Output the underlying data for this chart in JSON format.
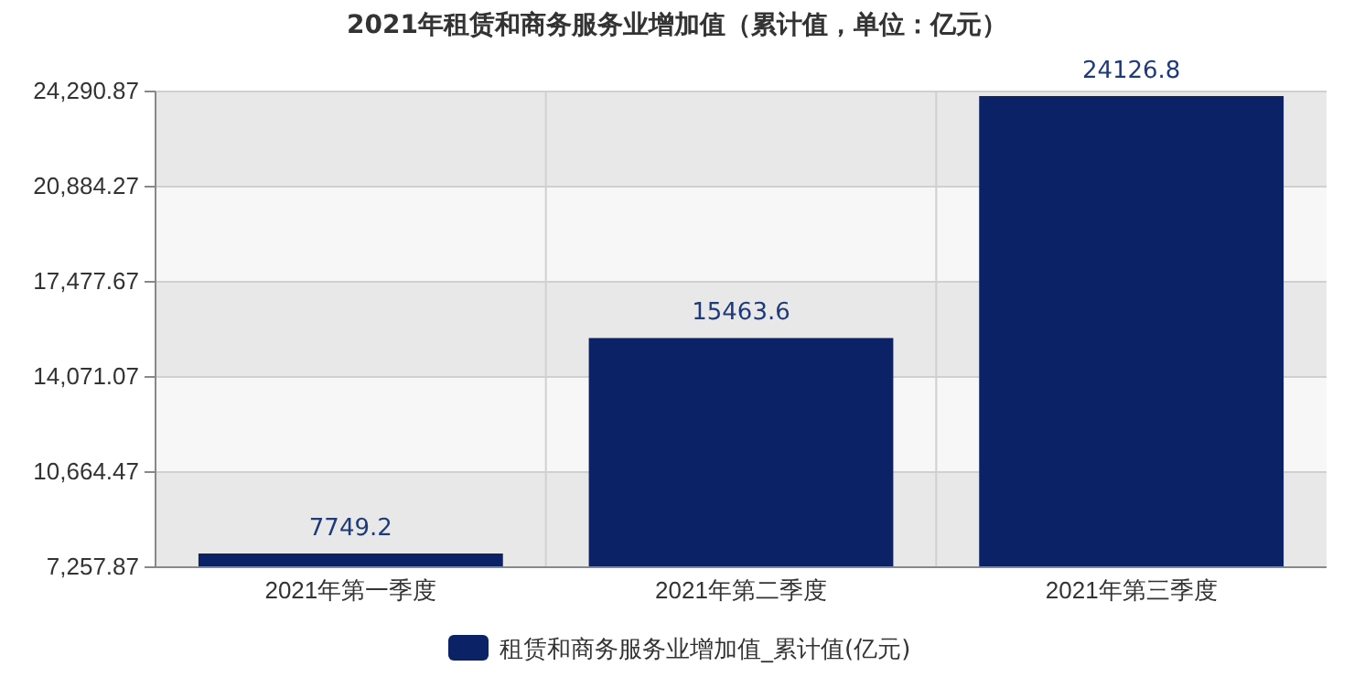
{
  "chart_data": {
    "type": "bar",
    "title": "2021年租赁和商务服务业增加值（累计值，单位：亿元）",
    "categories": [
      "2021年第一季度",
      "2021年第二季度",
      "2021年第三季度"
    ],
    "series": [
      {
        "name": "租赁和商务服务业增加值_累计值(亿元)",
        "color": "#0c2266",
        "values": [
          7749.2,
          15463.6,
          24126.8
        ]
      }
    ],
    "ylim": [
      7257.87,
      24290.87
    ],
    "yticks": [
      {
        "value": 7257.87,
        "label": "7,257.87"
      },
      {
        "value": 10664.47,
        "label": "10,664.47"
      },
      {
        "value": 14071.07,
        "label": "14,071.07"
      },
      {
        "value": 17477.67,
        "label": "17,477.67"
      },
      {
        "value": 20884.27,
        "label": "20,884.27"
      },
      {
        "value": 24290.87,
        "label": "24,290.87"
      }
    ],
    "grid": true,
    "data_labels": true,
    "legend": "bottom"
  }
}
